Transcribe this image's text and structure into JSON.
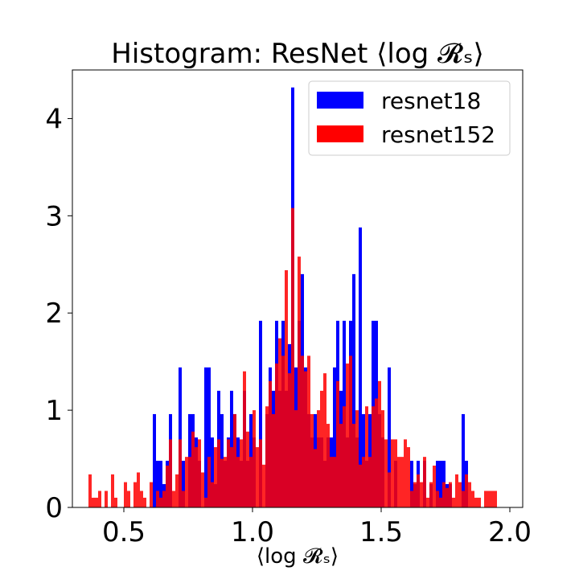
{
  "chart_data": {
    "type": "bar",
    "title": "Histogram: ResNet ⟨log 𝓡ₛ⟩",
    "xlabel": "⟨log 𝓡ₛ⟩",
    "ylabel": "",
    "xlim": [
      0.3,
      2.05
    ],
    "ylim": [
      0,
      4.5
    ],
    "xticks": [
      0.5,
      1.0,
      1.5,
      2.0
    ],
    "xtick_labels": [
      "0.5",
      "1.0",
      "1.5",
      "2.0"
    ],
    "yticks": [
      0,
      1,
      2,
      3,
      4
    ],
    "ytick_labels": [
      "0",
      "1",
      "2",
      "3",
      "4"
    ],
    "grid": false,
    "legend_position": "top-right",
    "series": [
      {
        "name": "resnet18",
        "color": "#0000ff",
        "bin_width": 0.0125,
        "bins": [
          [
            0.6125,
            0.96
          ],
          [
            0.625,
            0.48
          ],
          [
            0.6375,
            0.48
          ],
          [
            0.65,
            0.24
          ],
          [
            0.6625,
            0.48
          ],
          [
            0.675,
            0.96
          ],
          [
            0.7125,
            1.44
          ],
          [
            0.725,
            0.48
          ],
          [
            0.75,
            0.96
          ],
          [
            0.7625,
            0.96
          ],
          [
            0.775,
            0.72
          ],
          [
            0.7875,
            0.48
          ],
          [
            0.8125,
            1.44
          ],
          [
            0.825,
            1.44
          ],
          [
            0.8375,
            0.72
          ],
          [
            0.85,
            0.24
          ],
          [
            0.8625,
            1.2
          ],
          [
            0.875,
            0.96
          ],
          [
            0.8875,
            0.48
          ],
          [
            0.9,
            0.72
          ],
          [
            0.9125,
            1.2
          ],
          [
            0.925,
            0.96
          ],
          [
            0.9375,
            0.72
          ],
          [
            0.95,
            0.48
          ],
          [
            0.9625,
            1.2
          ],
          [
            0.975,
            0.48
          ],
          [
            0.9875,
            0.96
          ],
          [
            1.0,
            0.72
          ],
          [
            1.025,
            1.92
          ],
          [
            1.05,
            0.96
          ],
          [
            1.0625,
            1.44
          ],
          [
            1.075,
            1.2
          ],
          [
            1.0875,
            1.92
          ],
          [
            1.1,
            1.2
          ],
          [
            1.1125,
            1.92
          ],
          [
            1.125,
            1.2
          ],
          [
            1.1375,
            1.68
          ],
          [
            1.15,
            4.32
          ],
          [
            1.1625,
            1.44
          ],
          [
            1.175,
            1.92
          ],
          [
            1.1875,
            2.4
          ],
          [
            1.2,
            1.44
          ],
          [
            1.2125,
            0.96
          ],
          [
            1.225,
            0.72
          ],
          [
            1.2375,
            0.96
          ],
          [
            1.25,
            0.72
          ],
          [
            1.2625,
            0.72
          ],
          [
            1.275,
            0.48
          ],
          [
            1.2875,
            0.72
          ],
          [
            1.3,
            0.72
          ],
          [
            1.3125,
            1.44
          ],
          [
            1.325,
            1.92
          ],
          [
            1.3375,
            1.2
          ],
          [
            1.35,
            1.92
          ],
          [
            1.3625,
            0.72
          ],
          [
            1.375,
            1.92
          ],
          [
            1.3875,
            2.4
          ],
          [
            1.4,
            0.72
          ],
          [
            1.4125,
            2.88
          ],
          [
            1.425,
            0.96
          ],
          [
            1.4375,
            0.48
          ],
          [
            1.45,
            0.96
          ],
          [
            1.4625,
            1.92
          ],
          [
            1.475,
            1.92
          ],
          [
            1.4875,
            0.96
          ],
          [
            1.5,
            0.72
          ],
          [
            1.525,
            1.44
          ],
          [
            1.55,
            0.48
          ],
          [
            1.6125,
            0.48
          ],
          [
            1.625,
            0.24
          ],
          [
            1.6375,
            0.48
          ],
          [
            1.6625,
            0.48
          ],
          [
            1.6875,
            0.24
          ],
          [
            1.7125,
            0.48
          ],
          [
            1.725,
            0.48
          ],
          [
            1.7375,
            0.48
          ],
          [
            1.75,
            0.24
          ],
          [
            1.7625,
            0.24
          ],
          [
            1.8125,
            0.96
          ],
          [
            1.825,
            0.48
          ]
        ]
      },
      {
        "name": "resnet152",
        "color": "#ff0000",
        "bin_width": 0.0125,
        "bins": [
          [
            0.3625,
            0.34
          ],
          [
            0.375,
            0.1
          ],
          [
            0.3875,
            0.1
          ],
          [
            0.4,
            0.17
          ],
          [
            0.425,
            0.17
          ],
          [
            0.45,
            0.34
          ],
          [
            0.4625,
            0.1
          ],
          [
            0.5,
            0.26
          ],
          [
            0.5125,
            0.17
          ],
          [
            0.5375,
            0.26
          ],
          [
            0.55,
            0.36
          ],
          [
            0.5625,
            0.17
          ],
          [
            0.575,
            0.1
          ],
          [
            0.6,
            0.26
          ],
          [
            0.625,
            0.17
          ],
          [
            0.6375,
            0.1
          ],
          [
            0.65,
            0.17
          ],
          [
            0.6625,
            0.43
          ],
          [
            0.675,
            0.7
          ],
          [
            0.6875,
            0.17
          ],
          [
            0.7,
            0.34
          ],
          [
            0.7125,
            0.7
          ],
          [
            0.725,
            0.17
          ],
          [
            0.7375,
            0.52
          ],
          [
            0.75,
            0.52
          ],
          [
            0.7625,
            0.78
          ],
          [
            0.775,
            0.62
          ],
          [
            0.7875,
            0.7
          ],
          [
            0.8,
            0.36
          ],
          [
            0.8125,
            0.1
          ],
          [
            0.825,
            0.52
          ],
          [
            0.8375,
            0.26
          ],
          [
            0.85,
            0.62
          ],
          [
            0.8625,
            0.7
          ],
          [
            0.875,
            0.5
          ],
          [
            0.8875,
            0.52
          ],
          [
            0.9,
            0.7
          ],
          [
            0.9125,
            0.62
          ],
          [
            0.925,
            0.96
          ],
          [
            0.9375,
            0.52
          ],
          [
            0.95,
            0.7
          ],
          [
            0.9625,
            1.4
          ],
          [
            0.975,
            0.78
          ],
          [
            0.9875,
            0.52
          ],
          [
            1.0,
            1.0
          ],
          [
            1.0125,
            0.62
          ],
          [
            1.025,
            0.7
          ],
          [
            1.0375,
            0.44
          ],
          [
            1.05,
            1.04
          ],
          [
            1.0625,
            1.3
          ],
          [
            1.075,
            0.96
          ],
          [
            1.0875,
            1.48
          ],
          [
            1.1,
            1.74
          ],
          [
            1.1125,
            1.56
          ],
          [
            1.125,
            2.44
          ],
          [
            1.1375,
            1.38
          ],
          [
            1.15,
            3.08
          ],
          [
            1.1625,
            1.0
          ],
          [
            1.175,
            2.58
          ],
          [
            1.1875,
            1.56
          ],
          [
            1.2,
            1.4
          ],
          [
            1.2125,
            1.56
          ],
          [
            1.225,
            0.96
          ],
          [
            1.2375,
            0.6
          ],
          [
            1.25,
            1.0
          ],
          [
            1.2625,
            1.2
          ],
          [
            1.275,
            1.38
          ],
          [
            1.2875,
            0.86
          ],
          [
            1.3,
            0.52
          ],
          [
            1.3125,
            0.52
          ],
          [
            1.325,
            1.3
          ],
          [
            1.3375,
            0.86
          ],
          [
            1.35,
            1.04
          ],
          [
            1.3625,
            1.48
          ],
          [
            1.375,
            1.56
          ],
          [
            1.3875,
            0.86
          ],
          [
            1.4,
            1.0
          ],
          [
            1.4125,
            0.44
          ],
          [
            1.425,
            0.52
          ],
          [
            1.4375,
            1.04
          ],
          [
            1.45,
            0.52
          ],
          [
            1.4625,
            1.04
          ],
          [
            1.475,
            1.12
          ],
          [
            1.4875,
            1.3
          ],
          [
            1.5,
            1.0
          ],
          [
            1.5125,
            0.7
          ],
          [
            1.525,
            0.36
          ],
          [
            1.5375,
            0.7
          ],
          [
            1.55,
            0.7
          ],
          [
            1.5625,
            0.52
          ],
          [
            1.575,
            0.52
          ],
          [
            1.5875,
            0.7
          ],
          [
            1.6,
            0.62
          ],
          [
            1.6125,
            0.17
          ],
          [
            1.625,
            0.26
          ],
          [
            1.6375,
            0.34
          ],
          [
            1.65,
            0.26
          ],
          [
            1.6625,
            0.52
          ],
          [
            1.675,
            0.1
          ],
          [
            1.6875,
            0.26
          ],
          [
            1.7,
            0.43
          ],
          [
            1.7125,
            0.17
          ],
          [
            1.725,
            0.1
          ],
          [
            1.7375,
            0.26
          ],
          [
            1.75,
            0.2
          ],
          [
            1.7625,
            0.26
          ],
          [
            1.775,
            0.1
          ],
          [
            1.7875,
            0.34
          ],
          [
            1.8,
            0.26
          ],
          [
            1.8125,
            0.17
          ],
          [
            1.825,
            0.34
          ],
          [
            1.8375,
            0.26
          ],
          [
            1.85,
            0.17
          ],
          [
            1.8625,
            0.1
          ],
          [
            1.875,
            0.1
          ],
          [
            1.9,
            0.17
          ],
          [
            1.9125,
            0.17
          ],
          [
            1.925,
            0.17
          ],
          [
            1.9375,
            0.17
          ]
        ]
      }
    ]
  }
}
